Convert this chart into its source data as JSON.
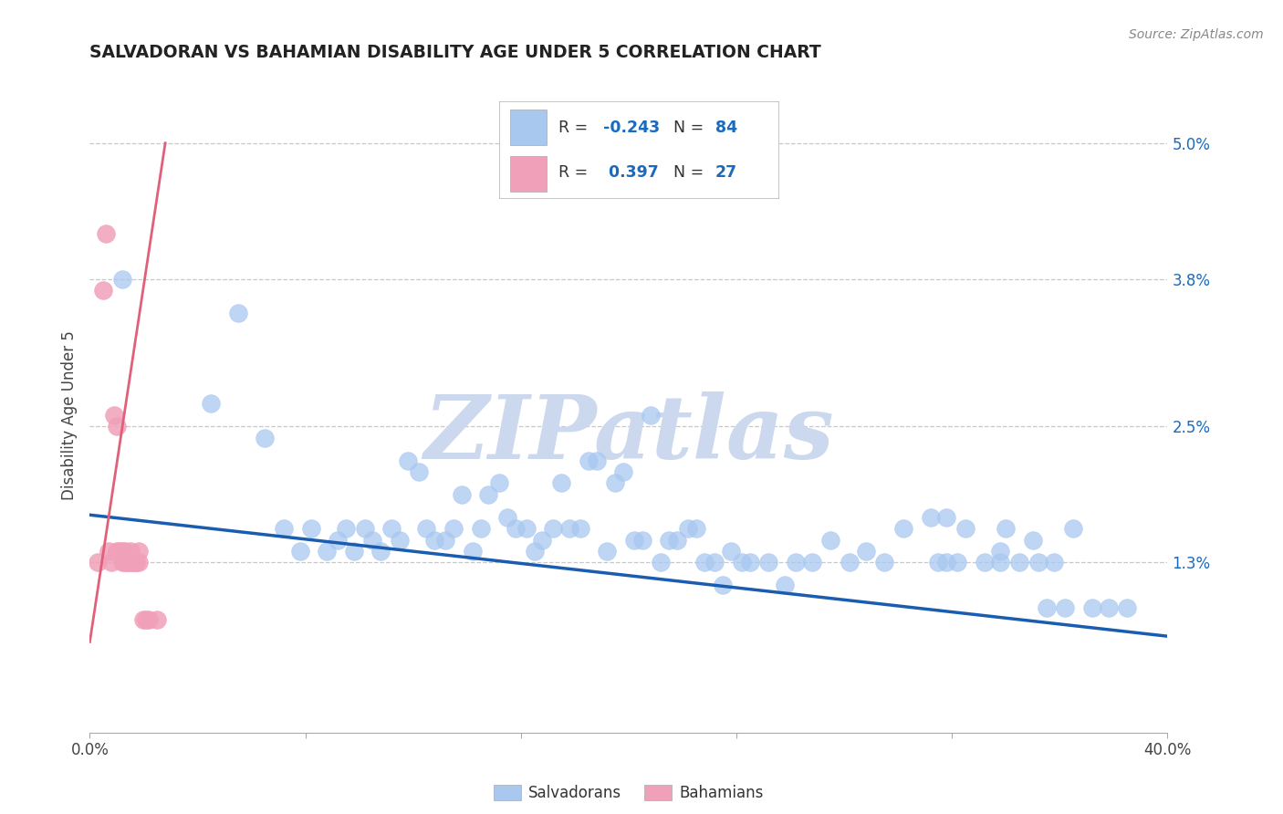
{
  "title": "SALVADORAN VS BAHAMIAN DISABILITY AGE UNDER 5 CORRELATION CHART",
  "source": "Source: ZipAtlas.com",
  "ylabel": "Disability Age Under 5",
  "xlim": [
    0.0,
    0.4
  ],
  "ylim": [
    -0.002,
    0.054
  ],
  "ytick_vals": [
    0.013,
    0.025,
    0.038,
    0.05
  ],
  "ytick_labels": [
    "1.3%",
    "2.5%",
    "3.8%",
    "5.0%"
  ],
  "xtick_vals": [
    0.0,
    0.08,
    0.16,
    0.24,
    0.32,
    0.4
  ],
  "xtick_labels": [
    "0.0%",
    "",
    "",
    "",
    "",
    "40.0%"
  ],
  "blue_color": "#a8c8f0",
  "blue_line_color": "#1a5db0",
  "pink_color": "#f0a0b8",
  "pink_line_color": "#e0607a",
  "grid_color": "#c8c8c8",
  "R_blue": -0.243,
  "N_blue": 84,
  "R_pink": 0.397,
  "N_pink": 27,
  "blue_scatter_x": [
    0.012,
    0.045,
    0.055,
    0.065,
    0.072,
    0.078,
    0.082,
    0.088,
    0.092,
    0.095,
    0.098,
    0.102,
    0.105,
    0.108,
    0.112,
    0.115,
    0.118,
    0.122,
    0.125,
    0.128,
    0.132,
    0.135,
    0.138,
    0.142,
    0.145,
    0.148,
    0.152,
    0.155,
    0.158,
    0.162,
    0.165,
    0.168,
    0.172,
    0.175,
    0.178,
    0.182,
    0.185,
    0.188,
    0.192,
    0.195,
    0.198,
    0.202,
    0.205,
    0.208,
    0.212,
    0.215,
    0.218,
    0.222,
    0.225,
    0.228,
    0.232,
    0.235,
    0.238,
    0.242,
    0.245,
    0.252,
    0.258,
    0.262,
    0.268,
    0.275,
    0.282,
    0.288,
    0.295,
    0.302,
    0.312,
    0.318,
    0.325,
    0.332,
    0.338,
    0.345,
    0.352,
    0.358,
    0.365,
    0.318,
    0.338,
    0.355,
    0.362,
    0.372,
    0.378,
    0.385,
    0.315,
    0.322,
    0.34,
    0.35
  ],
  "blue_scatter_y": [
    0.038,
    0.027,
    0.035,
    0.024,
    0.016,
    0.014,
    0.016,
    0.014,
    0.015,
    0.016,
    0.014,
    0.016,
    0.015,
    0.014,
    0.016,
    0.015,
    0.022,
    0.021,
    0.016,
    0.015,
    0.015,
    0.016,
    0.019,
    0.014,
    0.016,
    0.019,
    0.02,
    0.017,
    0.016,
    0.016,
    0.014,
    0.015,
    0.016,
    0.02,
    0.016,
    0.016,
    0.022,
    0.022,
    0.014,
    0.02,
    0.021,
    0.015,
    0.015,
    0.026,
    0.013,
    0.015,
    0.015,
    0.016,
    0.016,
    0.013,
    0.013,
    0.011,
    0.014,
    0.013,
    0.013,
    0.013,
    0.011,
    0.013,
    0.013,
    0.015,
    0.013,
    0.014,
    0.013,
    0.016,
    0.017,
    0.013,
    0.016,
    0.013,
    0.013,
    0.013,
    0.013,
    0.013,
    0.016,
    0.017,
    0.014,
    0.009,
    0.009,
    0.009,
    0.009,
    0.009,
    0.013,
    0.013,
    0.016,
    0.015
  ],
  "pink_scatter_x": [
    0.003,
    0.006,
    0.005,
    0.007,
    0.008,
    0.009,
    0.01,
    0.01,
    0.011,
    0.012,
    0.012,
    0.013,
    0.013,
    0.014,
    0.014,
    0.015,
    0.015,
    0.016,
    0.016,
    0.017,
    0.017,
    0.018,
    0.018,
    0.02,
    0.021,
    0.022,
    0.025
  ],
  "pink_scatter_y": [
    0.013,
    0.042,
    0.037,
    0.014,
    0.013,
    0.026,
    0.025,
    0.014,
    0.014,
    0.013,
    0.014,
    0.013,
    0.014,
    0.013,
    0.013,
    0.013,
    0.014,
    0.013,
    0.013,
    0.013,
    0.013,
    0.013,
    0.014,
    0.008,
    0.008,
    0.008,
    0.008
  ],
  "blue_trend_x": [
    0.0,
    0.4
  ],
  "blue_trend_y": [
    0.0172,
    0.0065
  ],
  "pink_trend_x": [
    0.0,
    0.028
  ],
  "pink_trend_y": [
    0.006,
    0.05
  ],
  "watermark": "ZIPatlas",
  "watermark_color": "#ccd8ee",
  "background_color": "#ffffff",
  "text_color": "#222222",
  "source_color": "#888888",
  "legend_value_color": "#1a6abf",
  "legend_box_color": "#dddddd"
}
